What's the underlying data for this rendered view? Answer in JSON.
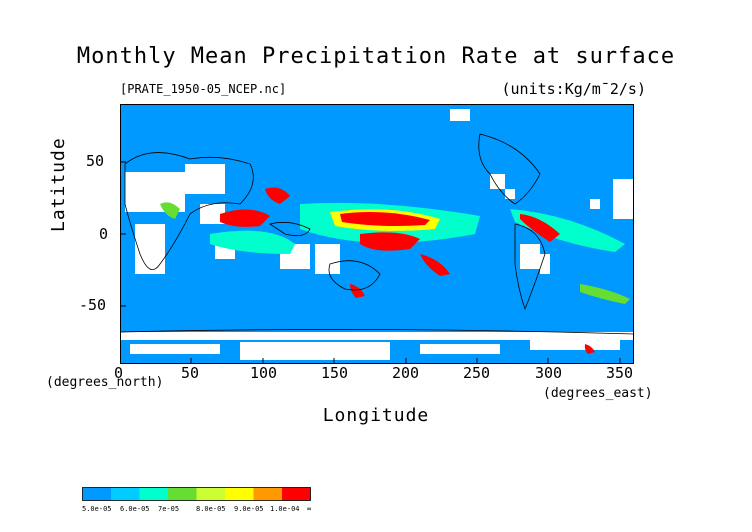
{
  "title": "Monthly Mean Precipitation Rate at surface",
  "dataset_file": "[PRATE_1950-05_NCEP.nc]",
  "units": "(units:Kg/m¯2/s)",
  "axes": {
    "x_label": "Longitude",
    "y_label": "Latitude",
    "x_unit": "(degrees_east)",
    "y_unit": "(degrees_north)",
    "x_range": [
      0,
      360
    ],
    "y_range": [
      -90,
      90
    ],
    "x_ticks": [
      "0",
      "50",
      "100",
      "150",
      "200",
      "250",
      "300",
      "350"
    ],
    "y_ticks": [
      "50",
      "0",
      "-50"
    ]
  },
  "colors": {
    "below_min": "#ffffff",
    "levels": [
      "#0099ff",
      "#00ccff",
      "#00ffcc",
      "#66dd33",
      "#ccff33",
      "#ffff00",
      "#ff9900",
      "#ff0000"
    ]
  },
  "colorbar": {
    "labels": [
      "5.0e-05",
      "6.0e-05",
      "7e-05",
      "8.0e-05",
      "9.0e-05",
      "1.0e-04",
      "∞"
    ]
  },
  "map_data": {
    "heavy_precipitation_regions": [
      {
        "lon": 195,
        "lat": 5,
        "level": "1.0e-04+"
      },
      {
        "lon": 170,
        "lat": -10,
        "level": "1.0e-04+"
      },
      {
        "lon": 210,
        "lat": -20,
        "level": "1.0e-04+"
      },
      {
        "lon": 310,
        "lat": 0,
        "level": "1.0e-04+"
      },
      {
        "lon": 75,
        "lat": 10,
        "level": "1.0e-04+"
      },
      {
        "lon": 115,
        "lat": 25,
        "level": "1.0e-04+"
      }
    ],
    "dry_regions_white": [
      {
        "lon": 15,
        "lat": 20
      },
      {
        "lon": 55,
        "lat": 25
      },
      {
        "lon": 130,
        "lat": -25
      },
      {
        "lon": 255,
        "lat": 40
      },
      {
        "lon": 280,
        "lat": -15
      },
      {
        "lon": 150,
        "lat": -80
      }
    ]
  }
}
